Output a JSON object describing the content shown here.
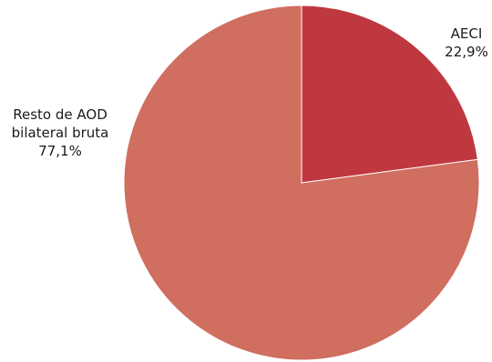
{
  "chart_data": {
    "type": "pie",
    "title": "",
    "slices": [
      {
        "label": "AECI",
        "label_lines": [
          "AECI"
        ],
        "value": 22.9,
        "value_label": "22,9%",
        "color": "#c0383f"
      },
      {
        "label": "Resto de AOD bilateral bruta",
        "label_lines": [
          "Resto de AOD",
          "bilateral bruta"
        ],
        "value": 77.1,
        "value_label": "77,1%",
        "color": "#d06e60"
      }
    ],
    "start_angle": "12 o'clock",
    "direction": "clockwise",
    "legend": "none"
  }
}
